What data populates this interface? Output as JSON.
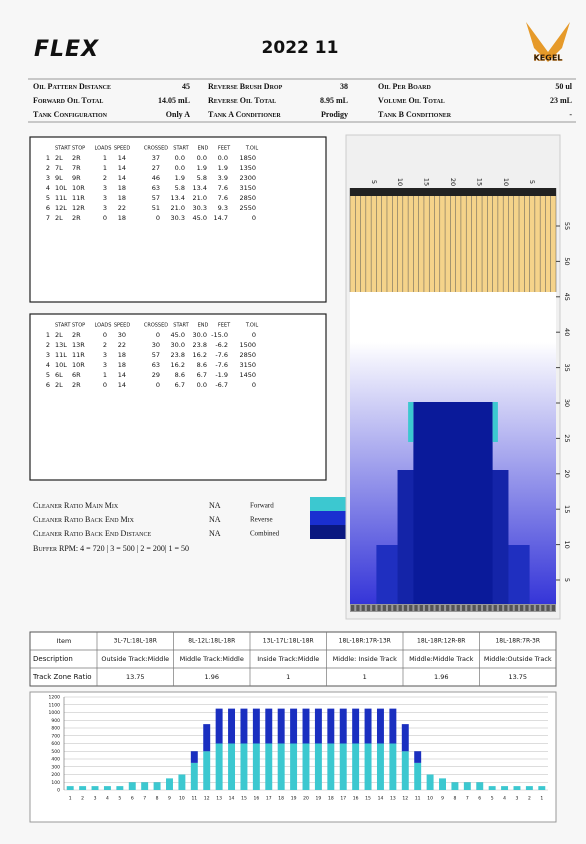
{
  "header": {
    "logo": "FLEX",
    "title": "2022 11",
    "brand": "KEGEL"
  },
  "info": [
    [
      "Oil Pattern Distance",
      "45"
    ],
    [
      "Reverse Brush Drop",
      "38"
    ],
    [
      "Oil Per Board",
      "50 ul"
    ],
    [
      "Forward Oil Total",
      "14.05 mL"
    ],
    [
      "Reverse Oil Total",
      "8.95 mL"
    ],
    [
      "Volume Oil Total",
      "23 mL"
    ],
    [
      "Tank Configuration",
      "Only A"
    ],
    [
      "Tank A Conditioner",
      "Prodigy"
    ],
    [
      "Tank B Conditioner",
      "-"
    ]
  ],
  "forward_table": {
    "columns": [
      "START",
      "STOP",
      "LOADS",
      "SPEED",
      "CROSSED",
      "START",
      "END",
      "FEET",
      "T.OIL"
    ],
    "rows": [
      [
        "1",
        "2L",
        "2R",
        "1",
        "14",
        "37",
        "0.0",
        "0.0",
        "0.0",
        "1850"
      ],
      [
        "2",
        "7L",
        "7R",
        "1",
        "14",
        "27",
        "0.0",
        "1.9",
        "1.9",
        "1350"
      ],
      [
        "3",
        "9L",
        "9R",
        "2",
        "14",
        "46",
        "1.9",
        "5.8",
        "3.9",
        "2300"
      ],
      [
        "4",
        "10L",
        "10R",
        "3",
        "18",
        "63",
        "5.8",
        "13.4",
        "7.6",
        "3150"
      ],
      [
        "5",
        "11L",
        "11R",
        "3",
        "18",
        "57",
        "13.4",
        "21.0",
        "7.6",
        "2850"
      ],
      [
        "6",
        "12L",
        "12R",
        "3",
        "22",
        "51",
        "21.0",
        "30.3",
        "9.3",
        "2550"
      ],
      [
        "7",
        "2L",
        "2R",
        "0",
        "18",
        "0",
        "30.3",
        "45.0",
        "14.7",
        "0"
      ]
    ]
  },
  "reverse_table": {
    "columns": [
      "START",
      "STOP",
      "LOADS",
      "SPEED",
      "CROSSED",
      "START",
      "END",
      "FEET",
      "T.OIL"
    ],
    "rows": [
      [
        "1",
        "2L",
        "2R",
        "0",
        "30",
        "0",
        "45.0",
        "30.0",
        "-15.0",
        "0"
      ],
      [
        "2",
        "13L",
        "13R",
        "2",
        "22",
        "30",
        "30.0",
        "23.8",
        "-6.2",
        "1500"
      ],
      [
        "3",
        "11L",
        "11R",
        "3",
        "18",
        "57",
        "23.8",
        "16.2",
        "-7.6",
        "2850"
      ],
      [
        "4",
        "10L",
        "10R",
        "3",
        "18",
        "63",
        "16.2",
        "8.6",
        "-7.6",
        "3150"
      ],
      [
        "5",
        "6L",
        "6R",
        "1",
        "14",
        "29",
        "8.6",
        "6.7",
        "-1.9",
        "1450"
      ],
      [
        "6",
        "2L",
        "2R",
        "0",
        "14",
        "0",
        "6.7",
        "0.0",
        "-6.7",
        "0"
      ]
    ]
  },
  "cleaner": [
    {
      "label": "Cleaner Ratio Main Mix",
      "value": "NA",
      "legend": "Forward",
      "color": "#3cc8d0"
    },
    {
      "label": "Cleaner Ratio Back End Mix",
      "value": "NA",
      "legend": "Reverse",
      "color": "#1a2fd0"
    },
    {
      "label": "Cleaner Ratio Back End Distance",
      "value": "NA",
      "legend": "Combined",
      "color": "#0a1880"
    }
  ],
  "buffer_rpm": "Buffer RPM: 4 = 720 | 3 = 500 | 2 = 200| 1 = 50",
  "lane": {
    "board_labels": [
      "5",
      "10",
      "15",
      "20",
      "15",
      "10",
      "5"
    ],
    "feet_labels": [
      "5",
      "10",
      "15",
      "20",
      "25",
      "30",
      "35",
      "40",
      "45",
      "50",
      "55"
    ]
  },
  "track_zone": {
    "item_label": "Item",
    "items": [
      "3L-7L:18L-18R",
      "8L-12L:18L-18R",
      "13L-17L:18L-18R",
      "18L-18R:17R-13R",
      "18L-18R:12R-8R",
      "18L-18R:7R-3R"
    ],
    "description_label": "Description",
    "descriptions": [
      "Outside Track:Middle",
      "Middle Track:Middle",
      "Inside Track:Middle",
      "Middle: Inside Track",
      "Middle:Middle Track",
      "Middle:Outside Track"
    ],
    "ratio_label": "Track Zone Ratio",
    "ratios": [
      "13.75",
      "1.96",
      "1",
      "1",
      "1.96",
      "13.75"
    ]
  },
  "chart_data": {
    "type": "bar",
    "categories": [
      "1",
      "2",
      "3",
      "4",
      "5",
      "6",
      "7",
      "8",
      "9",
      "10",
      "11",
      "12",
      "13",
      "14",
      "15",
      "16",
      "17",
      "18",
      "19",
      "20",
      "19",
      "18",
      "17",
      "16",
      "15",
      "14",
      "13",
      "12",
      "11",
      "10",
      "9",
      "8",
      "7",
      "6",
      "5",
      "4",
      "3",
      "2",
      "1"
    ],
    "series": [
      {
        "color": "#3cc8d0",
        "values": [
          50,
          50,
          50,
          50,
          50,
          100,
          100,
          100,
          150,
          200,
          350,
          500,
          600,
          600,
          600,
          600,
          600,
          600,
          600,
          600,
          600,
          600,
          600,
          600,
          600,
          600,
          600,
          500,
          350,
          200,
          150,
          100,
          100,
          100,
          50,
          50,
          50,
          50,
          50
        ]
      },
      {
        "color": "#1a2fc0",
        "values": [
          0,
          0,
          0,
          0,
          0,
          0,
          0,
          0,
          0,
          0,
          150,
          350,
          450,
          450,
          450,
          450,
          450,
          450,
          450,
          450,
          450,
          450,
          450,
          450,
          450,
          450,
          450,
          350,
          150,
          0,
          0,
          0,
          0,
          0,
          0,
          0,
          0,
          0,
          0
        ]
      }
    ],
    "ylim": [
      0,
      1200
    ],
    "yticks": [
      0,
      100,
      200,
      300,
      400,
      500,
      600,
      700,
      800,
      900,
      1000,
      1100,
      1200
    ],
    "grid": true
  }
}
